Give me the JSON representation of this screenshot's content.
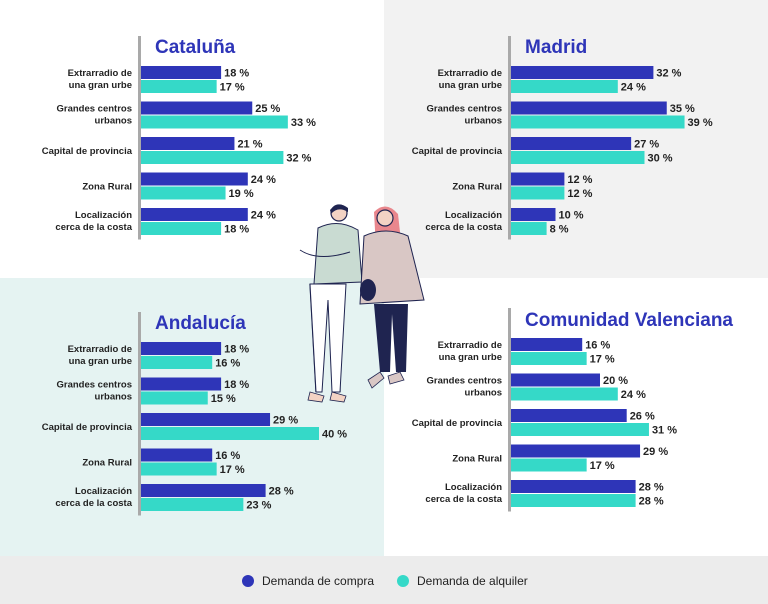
{
  "colors": {
    "compra": "#2e35b8",
    "alquiler": "#35d9c8",
    "title": "#2e35b8",
    "axis": "#a9a9a9"
  },
  "legend": {
    "compra": "Demanda de compra",
    "alquiler": "Demanda de alquiler"
  },
  "chart_data": [
    {
      "type": "bar",
      "title": "Cataluña",
      "categories": [
        [
          "Extrarradio de",
          "una gran urbe"
        ],
        [
          "Grandes centros",
          "urbanos"
        ],
        [
          "Capital de provincia"
        ],
        [
          "Zona Rural"
        ],
        [
          "Localización",
          "cerca de la costa"
        ]
      ],
      "series": [
        {
          "name": "Demanda de compra",
          "values": [
            18,
            25,
            21,
            24,
            24
          ]
        },
        {
          "name": "Demanda de alquiler",
          "values": [
            17,
            33,
            32,
            19,
            18
          ]
        }
      ],
      "unit": "%",
      "orientation": "horizontal"
    },
    {
      "type": "bar",
      "title": "Madrid",
      "categories": [
        [
          "Extrarradio de",
          "una gran urbe"
        ],
        [
          "Grandes centros",
          "urbanos"
        ],
        [
          "Capital de provincia"
        ],
        [
          "Zona Rural"
        ],
        [
          "Localización",
          "cerca de la costa"
        ]
      ],
      "series": [
        {
          "name": "Demanda de compra",
          "values": [
            32,
            35,
            27,
            12,
            10
          ]
        },
        {
          "name": "Demanda de alquiler",
          "values": [
            24,
            39,
            30,
            12,
            8
          ]
        }
      ],
      "unit": "%",
      "orientation": "horizontal"
    },
    {
      "type": "bar",
      "title": "Andalucía",
      "categories": [
        [
          "Extrarradio de",
          "una gran urbe"
        ],
        [
          "Grandes centros",
          "urbanos"
        ],
        [
          "Capital de provincia"
        ],
        [
          "Zona Rural"
        ],
        [
          "Localización",
          "cerca de la costa"
        ]
      ],
      "series": [
        {
          "name": "Demanda de compra",
          "values": [
            18,
            18,
            29,
            16,
            28
          ]
        },
        {
          "name": "Demanda de alquiler",
          "values": [
            16,
            15,
            40,
            17,
            23
          ]
        }
      ],
      "unit": "%",
      "orientation": "horizontal"
    },
    {
      "type": "bar",
      "title": "Comunidad Valenciana",
      "categories": [
        [
          "Extrarradio de",
          "una gran urbe"
        ],
        [
          "Grandes centros",
          "urbanos"
        ],
        [
          "Capital de provincia"
        ],
        [
          "Zona Rural"
        ],
        [
          "Localización",
          "cerca de la costa"
        ]
      ],
      "series": [
        {
          "name": "Demanda de compra",
          "values": [
            16,
            20,
            26,
            29,
            28
          ]
        },
        {
          "name": "Demanda de alquiler",
          "values": [
            17,
            24,
            31,
            17,
            28
          ]
        }
      ],
      "unit": "%",
      "orientation": "horizontal"
    }
  ]
}
